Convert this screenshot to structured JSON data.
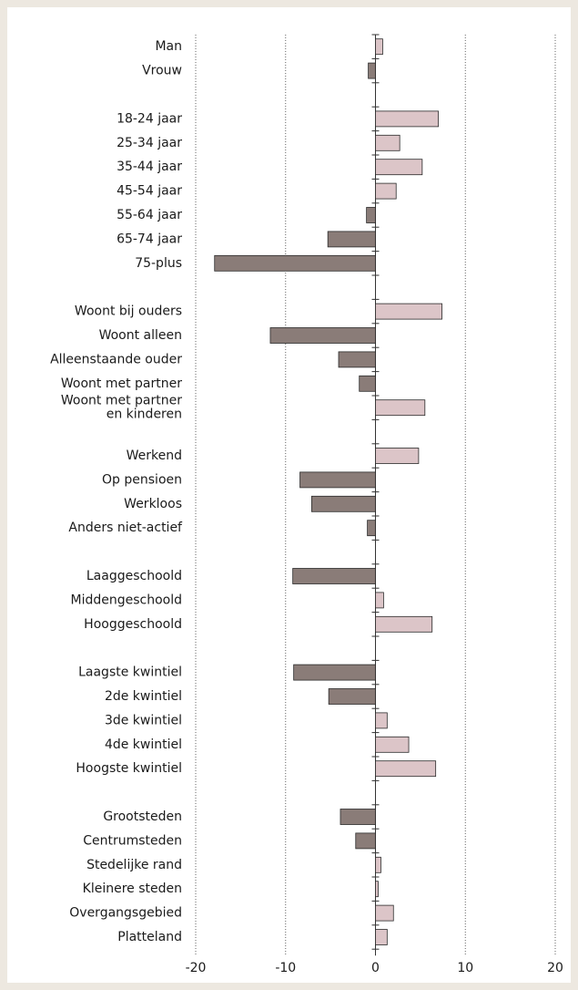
{
  "chart_data": {
    "type": "bar",
    "orientation": "horizontal",
    "categories": [
      "Man",
      "Vrouw",
      null,
      "18-24 jaar",
      "25-34 jaar",
      "35-44 jaar",
      "45-54 jaar",
      "55-64 jaar",
      "65-74 jaar",
      "75-plus",
      null,
      "Woont bij ouders",
      "Woont alleen",
      "Alleenstaande ouder",
      "Woont met partner",
      "Woont met partner\nen kinderen",
      null,
      "Werkend",
      "Op pensioen",
      "Werkloos",
      "Anders niet-actief",
      null,
      "Laaggeschoold",
      "Middengeschoold",
      "Hooggeschoold",
      null,
      "Laagste kwintiel",
      "2de kwintiel",
      "3de kwintiel",
      "4de kwintiel",
      "Hoogste kwintiel",
      null,
      "Grootsteden",
      "Centrumsteden",
      "Stedelijke rand",
      "Kleinere steden",
      "Overgangsgebied",
      "Platteland"
    ],
    "values": [
      0.8,
      -0.8,
      null,
      7.0,
      2.7,
      5.2,
      2.3,
      -1.0,
      -5.3,
      -17.9,
      null,
      7.4,
      -11.7,
      -4.1,
      -1.8,
      5.5,
      null,
      4.8,
      -8.4,
      -7.1,
      -0.9,
      null,
      -9.2,
      0.9,
      6.3,
      null,
      -9.1,
      -5.2,
      1.3,
      3.7,
      6.7,
      null,
      -3.9,
      -2.2,
      0.6,
      0.3,
      2.0,
      1.3
    ],
    "positive_color": "#dcc5c8",
    "negative_color": "#8a7c78",
    "xlim": [
      -20,
      20
    ],
    "xticks": [
      -20,
      -10,
      0,
      10,
      20
    ],
    "grid": true
  }
}
